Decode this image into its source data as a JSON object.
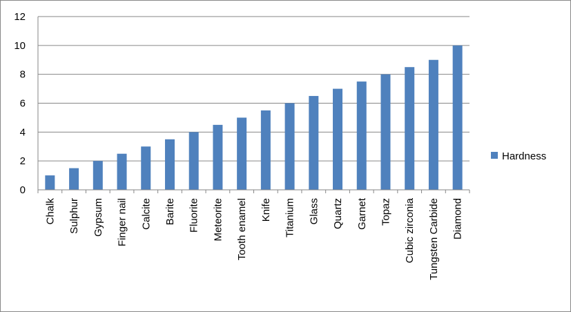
{
  "chart_data": {
    "type": "bar",
    "categories": [
      "Chalk",
      "Sulphur",
      "Gypsum",
      "Finger nail",
      "Calcite",
      "Barite",
      "Fluorite",
      "Meteorite",
      "Tooth enamel",
      "Knife",
      "Titanium",
      "Glass",
      "Quartz",
      "Garnet",
      "Topaz",
      "Cubic zirconia",
      "Tungsten Carbide",
      "Diamond"
    ],
    "series": [
      {
        "name": "Hardness",
        "values": [
          1,
          1.5,
          2,
          2.5,
          3,
          3.5,
          4,
          4.5,
          5,
          5.5,
          6,
          6.5,
          7,
          7.5,
          8,
          8.5,
          9,
          10
        ],
        "color": "#4f81bd"
      }
    ],
    "title": "",
    "xlabel": "",
    "ylabel": "",
    "ylim": [
      0,
      12
    ],
    "yticks": [
      "0",
      "2",
      "4",
      "6",
      "8",
      "10",
      "12"
    ],
    "grid": true,
    "legend_position": "right"
  }
}
